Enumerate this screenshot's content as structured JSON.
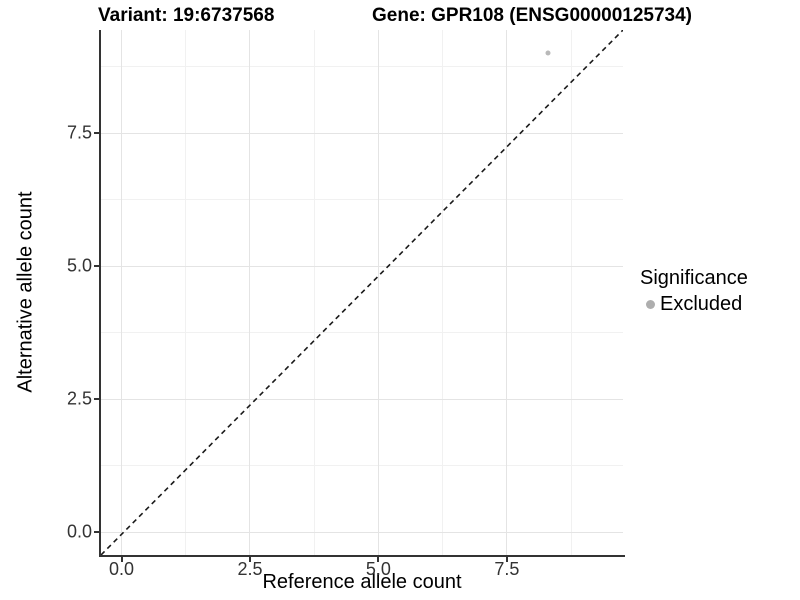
{
  "header": {
    "variant_title": "Variant: 19:6737568",
    "gene_title": "Gene: GPR108 (ENSG00000125734)"
  },
  "chart_data": {
    "type": "scatter",
    "title": "Variant: 19:6737568 / Gene: GPR108 (ENSG00000125734)",
    "xlabel": "Reference allele count",
    "ylabel": "Alternative allele count",
    "xlim": [
      -0.4,
      9.76
    ],
    "ylim": [
      -0.43,
      9.44
    ],
    "x_major_ticks": [
      0,
      2.5,
      5,
      7.5
    ],
    "y_major_ticks": [
      0,
      2.5,
      5,
      7.5
    ],
    "x_tick_labels": [
      "0.0",
      "2.5",
      "5.0",
      "7.5"
    ],
    "y_tick_labels": [
      "0.0",
      "2.5",
      "5.0",
      "7.5"
    ],
    "x_minor_ticks": [
      1.25,
      3.75,
      6.25,
      8.75
    ],
    "y_minor_ticks": [
      1.25,
      3.75,
      6.25,
      8.75
    ],
    "grid": true,
    "points": [
      {
        "x": 8.3,
        "y": 9.0,
        "series": "Excluded"
      }
    ],
    "reference_line": {
      "kind": "identity",
      "slope": 1,
      "intercept": 0,
      "style": "dashed"
    },
    "legend": {
      "title": "Significance",
      "position": "right",
      "entries": [
        {
          "label": "Excluded",
          "color": "#b9b9b9"
        }
      ]
    }
  },
  "colors": {
    "point": "#b9b9b9",
    "legend_key": "#aeaeae",
    "grid_major": "#e4e4e4",
    "grid_minor": "#f1f1f1",
    "axis_line": "#333333",
    "tick_label": "#333333",
    "dashed_line": "#1a1a1a",
    "background": "#ffffff"
  }
}
